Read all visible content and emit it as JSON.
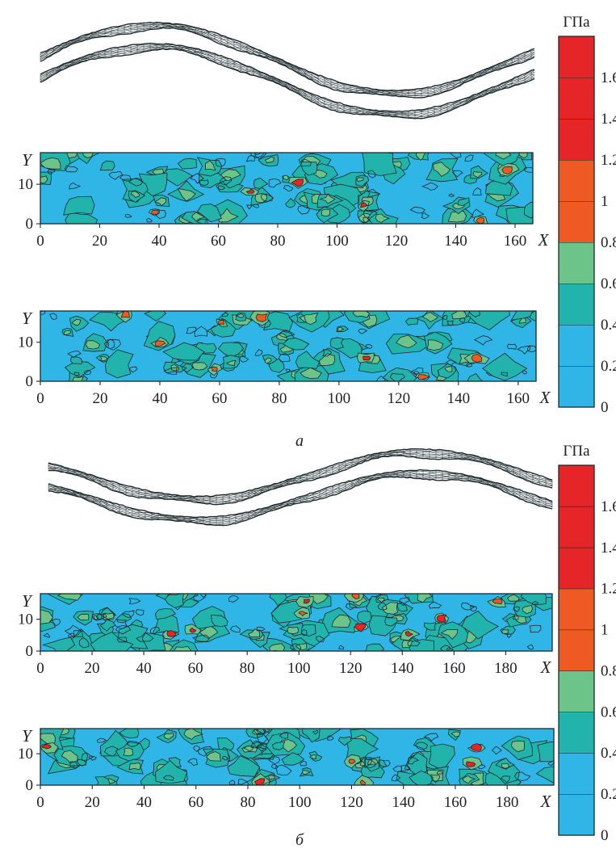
{
  "unit_label": "ГПа",
  "colorbar": {
    "tick_labels": [
      "0",
      "0.2",
      "0.4",
      "0.6",
      "0.8",
      "1",
      "1.2",
      "1.4",
      "1.6"
    ],
    "bands": [
      {
        "from": 0.0,
        "to": 0.2,
        "color": "#2fb5e6"
      },
      {
        "from": 0.2,
        "to": 0.4,
        "color": "#2fb5e6"
      },
      {
        "from": 0.4,
        "to": 0.6,
        "color": "#21b3ac"
      },
      {
        "from": 0.6,
        "to": 0.8,
        "color": "#6cc48b"
      },
      {
        "from": 0.8,
        "to": 1.0,
        "color": "#ef5a24"
      },
      {
        "from": 1.0,
        "to": 1.2,
        "color": "#ef5a24"
      },
      {
        "from": 1.2,
        "to": 1.4,
        "color": "#e52528"
      },
      {
        "from": 1.4,
        "to": 1.6,
        "color": "#e52528"
      },
      {
        "from": 1.6,
        "to": 1.8,
        "color": "#e52528"
      }
    ],
    "range": [
      0,
      1.8
    ]
  },
  "panels": [
    {
      "label": "а",
      "maps": [
        {
          "x_ticks": [
            "0",
            "20",
            "40",
            "60",
            "80",
            "100",
            "120",
            "140",
            "160"
          ],
          "y_ticks": [
            "0",
            "10"
          ],
          "x_axis_label": "X",
          "y_axis_label": "Y",
          "xlim": [
            0,
            166
          ],
          "ylim": [
            0,
            18
          ]
        },
        {
          "x_ticks": [
            "0",
            "20",
            "40",
            "60",
            "80",
            "100",
            "120",
            "140",
            "160"
          ],
          "y_ticks": [
            "0",
            "10"
          ],
          "x_axis_label": "X",
          "y_axis_label": "Y",
          "xlim": [
            0,
            166
          ],
          "ylim": [
            0,
            18
          ]
        }
      ]
    },
    {
      "label": "б",
      "maps": [
        {
          "x_ticks": [
            "0",
            "20",
            "40",
            "60",
            "80",
            "100",
            "120",
            "140",
            "160",
            "180"
          ],
          "y_ticks": [
            "0",
            "10"
          ],
          "x_axis_label": "X",
          "y_axis_label": "Y",
          "xlim": [
            0,
            198
          ],
          "ylim": [
            0,
            18
          ]
        },
        {
          "x_ticks": [
            "0",
            "20",
            "40",
            "60",
            "80",
            "100",
            "120",
            "140",
            "160",
            "180"
          ],
          "y_ticks": [
            "0",
            "10"
          ],
          "x_axis_label": "X",
          "y_axis_label": "Y",
          "xlim": [
            0,
            198
          ],
          "ylim": [
            0,
            18
          ]
        }
      ]
    }
  ]
}
